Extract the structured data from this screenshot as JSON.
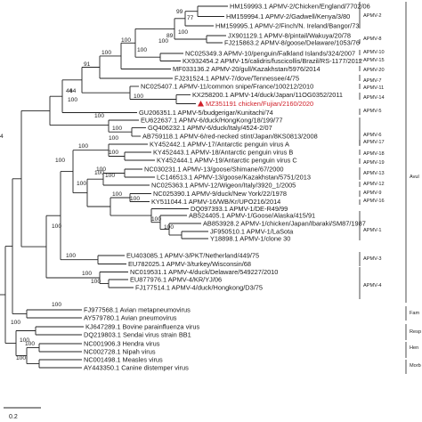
{
  "highlight_color": "#d0202a",
  "marker_icon": "red-triangle-icon",
  "taxa": [
    "HM159993.1 APMV-2/Chicken/England/7702/06",
    "HM159994.1 APMV-2/Gadwell/Kenya/3/80",
    "HM159995.1 APMV-2/Finch/N. Ireland/Bangor/73",
    "JX901129.1 APMV-8/pintail/Wakuya/20/78",
    "FJ215863.2 APMV-8/goose/Delaware/1053/76",
    "NC025349.3 APMV-10/penguin/Falkland Islands/324/2007",
    "KX932454.2 APMV-15/calidris/fuscicollis/Brazil/RS-1177/2012",
    "MF033136.2 APMV-20/gull/Kazakhstan/5976/2014",
    "FJ231524.1 APMV-7/dove/Tennessee/4/75",
    "NC025407.1 APMV-11/common snipe/France/100212/2010",
    "KX258200.1 APMV-14/duck/Japan/11OG0352/2011",
    "MZ351191 chicken/Fujian/2160/2020",
    "GU206351.1 APMV-5/budgerigar/Kunitachi/74",
    "EU622637.1 APMV-6/duck/HongKong/18/199/77",
    "GQ406232.1 APMV-6/duck/Italy/4524-2/07",
    "AB759118.1 APMV-6/red-necked stint/Japan/8KS0813/2008",
    "KY452442.1 APMV-17/Antarctic penguin virus A",
    "KY452443.1 APMV-18/Antarctic penguin virus B",
    "KY452444.1 APMV-19/Antarctic penguin virus C",
    "NC030231.1 APMV-13/goose/Shimane/67/2000",
    "LC146513.1 APMV-13/goose/Kazakhstan/5751/2013",
    "NC025363.1 APMV-12/Wigeon/Italy/3920_1/2005",
    "NC025390.1 APMV-9/duck/New York/22/1978",
    "KY511044.1 APMV-16/WB/Kr/UPO216/2014",
    "DQ097393.1 APMV-1/DE-R49/99",
    "AB524405.1 APMV-1/Goose/Alaska/415/91",
    "AB853928.2 APMV-1/chicken/Japan/Ibaraki/SM87/1987",
    "JF950510.1 APMV-1/LaSota",
    "Y18898.1 APMV-1/clone 30",
    "EU403085.1 APMV-3/PKT/Netherland/449/75",
    "EU782025.1 APMV-3/turkey/Wisconsin/68",
    "NC019531.1 APMV-4/duck/Delaware/549227/2010",
    "EU877976.1 APMV-4/KR/YJ/06",
    "FJ177514.1 APMV-4/duck/Hongkong/D3/75",
    "FJ977568.1 Avian metapneumovirus",
    "AY579780.1 Avian pneumovirus",
    "KJ647289.1 Bovine parainfluenza virus",
    "DQ219803.1 Sendai virus strain BB1",
    "NC001906.3 Hendra virus",
    "NC002728.1 Nipah virus",
    "NC001498.1 Measles virus",
    "AY443350.1 Canine distemper virus"
  ],
  "bootstrap_values": [
    "77",
    "99",
    "89",
    "100",
    "100",
    "100",
    "100",
    "100",
    "91",
    "64",
    "44",
    "100",
    "100",
    "100",
    "100",
    "100",
    "100",
    "100",
    "100",
    "100",
    "100",
    "100",
    "100",
    "100",
    "100",
    "100",
    "100",
    "100",
    "100",
    "100",
    "100",
    "100",
    "100",
    "100",
    "100",
    "100",
    "4"
  ],
  "groups": [
    "APMV-2",
    "APMV-8",
    "APMV-10",
    "APMV-15",
    "APMV-20",
    "APMV-7",
    "APMV-11",
    "APMV-14",
    "APMV-5",
    "APMV-6",
    "APMV-17",
    "APMV-18",
    "APMV-19",
    "APMV-13",
    "APMV-12",
    "APMV-9",
    "APMV-16",
    "APMV-1",
    "APMV-3",
    "APMV-4",
    "Avul",
    "Fam",
    "Resp",
    "Hen",
    "Morb"
  ],
  "scale_bar_label": "0.2"
}
